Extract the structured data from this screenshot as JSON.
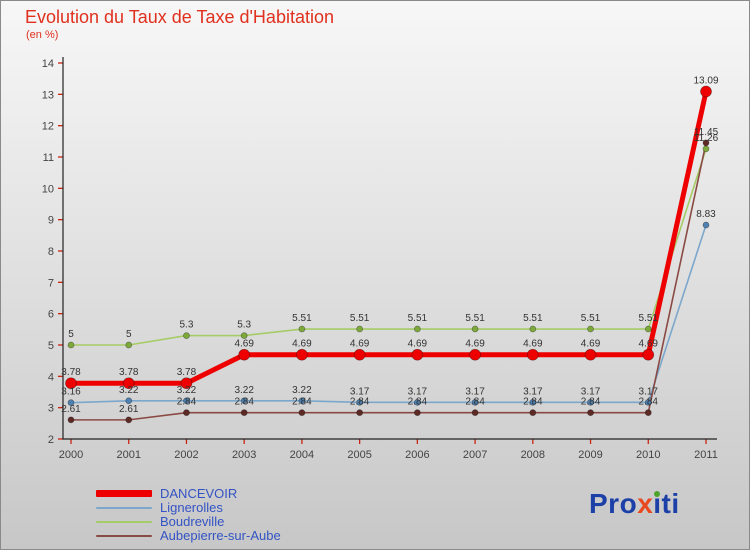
{
  "header": {
    "title": "Evolution du Taux de Taxe d'Habitation",
    "subtitle": "(en %)",
    "title_color": "#e0301e"
  },
  "chart_data": {
    "type": "line",
    "title": "Evolution du Taux de Taxe d'Habitation",
    "subtitle": "(en %)",
    "x": [
      2000,
      2001,
      2002,
      2003,
      2004,
      2005,
      2006,
      2007,
      2008,
      2009,
      2010,
      2011
    ],
    "xlabel": "",
    "ylabel": "",
    "ylim": [
      2,
      14
    ],
    "ytick_step": 1,
    "grid": false,
    "legend_position": "bottom-left",
    "axis_color": "#222222",
    "tick_color": "#cc2211",
    "value_label_color": "#333333",
    "legend_label_color": "#3353c4",
    "series": [
      {
        "name": "DANCEVOIR",
        "color": "#ee0000",
        "point_color": "#ee0000",
        "width": 5,
        "values": [
          3.78,
          3.78,
          3.78,
          4.69,
          4.69,
          4.69,
          4.69,
          4.69,
          4.69,
          4.69,
          4.69,
          13.09
        ]
      },
      {
        "name": "Lignerolles",
        "color": "#7ba7cc",
        "point_color": "#4f81b0",
        "width": 1.6,
        "values": [
          3.16,
          3.22,
          3.22,
          3.22,
          3.22,
          3.17,
          3.17,
          3.17,
          3.17,
          3.17,
          3.17,
          8.83
        ]
      },
      {
        "name": "Boudreville",
        "color": "#a5cc66",
        "point_color": "#7da83c",
        "width": 1.6,
        "values": [
          5,
          5,
          5.3,
          5.3,
          5.51,
          5.51,
          5.51,
          5.51,
          5.51,
          5.51,
          5.51,
          11.26
        ]
      },
      {
        "name": "Aubepierre-sur-Aube",
        "color": "#8a4a44",
        "point_color": "#5e2a26",
        "width": 1.6,
        "values": [
          2.61,
          2.61,
          2.84,
          2.84,
          2.84,
          2.84,
          2.84,
          2.84,
          2.84,
          2.84,
          2.84,
          11.45
        ]
      }
    ]
  },
  "logo": {
    "pro": "Pro",
    "x": "x",
    "i_dotless": "ı",
    "ti": "ti"
  }
}
